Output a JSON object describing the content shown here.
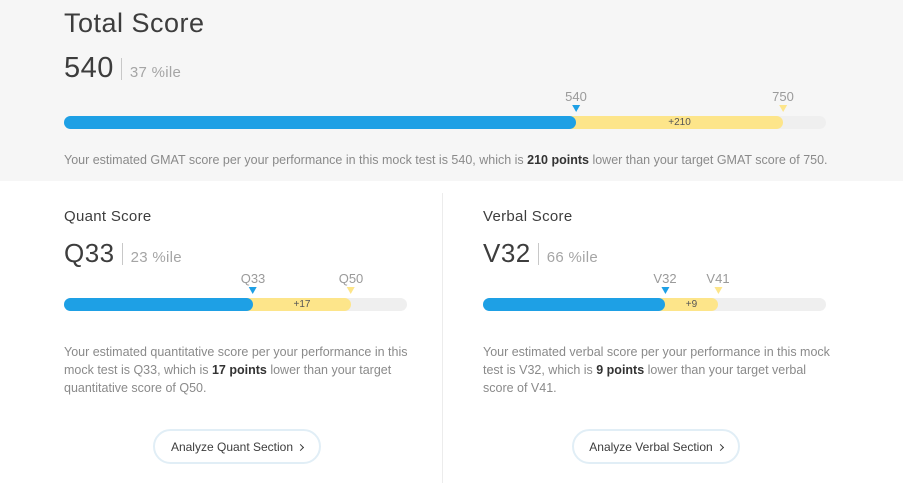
{
  "total": {
    "title": "Total Score",
    "score": "540",
    "percentile": "37 %ile",
    "current_label": "540",
    "target_label": "750",
    "gap_label": "+210",
    "current_fraction": 0.672,
    "target_fraction": 0.943,
    "desc_pre": "Your estimated GMAT score per your performance in this mock test is 540, which is ",
    "desc_bold": "210 points",
    "desc_post": " lower than your target GMAT score of 750."
  },
  "quant": {
    "title": "Quant Score",
    "score": "Q33",
    "percentile": "23 %ile",
    "current_label": "Q33",
    "target_label": "Q50",
    "gap_label": "+17",
    "current_fraction": 0.55,
    "target_fraction": 0.837,
    "desc_pre": "Your estimated quantitative score per your performance in this mock test is Q33, which is ",
    "desc_bold": "17 points",
    "desc_post": " lower than your target quantitative score of Q50.",
    "button_label": "Analyze Quant Section"
  },
  "verbal": {
    "title": "Verbal Score",
    "score": "V32",
    "percentile": "66 %ile",
    "current_label": "V32",
    "target_label": "V41",
    "gap_label": "+9",
    "current_fraction": 0.532,
    "target_fraction": 0.686,
    "desc_pre": "Your estimated verbal score per your performance in this mock test is V32, which is ",
    "desc_bold": "9 points",
    "desc_post": " lower than your target verbal score of V41.",
    "button_label": "Analyze Verbal Section"
  },
  "colors": {
    "current": "#1ea0e5",
    "target": "#fde58a",
    "track": "#efefef"
  },
  "icons": {
    "button_chevron": "chevron-right-icon",
    "current_marker": "triangle-down-blue",
    "target_marker": "triangle-down-yellow"
  }
}
